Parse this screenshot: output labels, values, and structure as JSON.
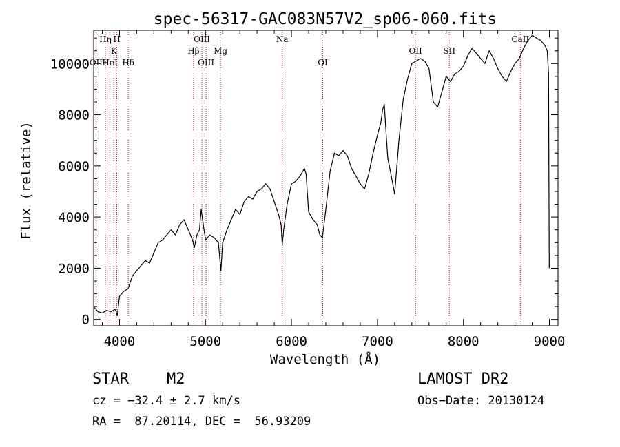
{
  "chart_data": {
    "type": "line",
    "title": "spec-56317-GAC083N57V2_sp06-060.fits",
    "xlabel": "Wavelength (Å)",
    "ylabel": "Flux (relative)",
    "xlim": [
      3700,
      9100
    ],
    "ylim": [
      -250,
      11300
    ],
    "xticks": [
      "4000",
      "5000",
      "6000",
      "7000",
      "8000",
      "9000"
    ],
    "yticks": [
      "0",
      "2000",
      "4000",
      "6000",
      "8000",
      "10000"
    ],
    "grid": false,
    "series": [
      {
        "x": [
          3700,
          3750,
          3800,
          3850,
          3900,
          3950,
          3975,
          4000,
          4050,
          4100,
          4150,
          4200,
          4250,
          4300,
          4350,
          4400,
          4450,
          4500,
          4550,
          4600,
          4650,
          4700,
          4750,
          4800,
          4850,
          4870,
          4900,
          4930,
          4950,
          5000,
          5050,
          5100,
          5150,
          5180,
          5200,
          5250,
          5300,
          5350,
          5400,
          5450,
          5500,
          5550,
          5600,
          5650,
          5700,
          5750,
          5800,
          5850,
          5880,
          5893,
          5910,
          5950,
          6000,
          6050,
          6100,
          6150,
          6170,
          6200,
          6250,
          6300,
          6330,
          6360,
          6400,
          6450,
          6500,
          6550,
          6600,
          6650,
          6700,
          6750,
          6800,
          6850,
          6900,
          6950,
          7000,
          7040,
          7060,
          7080,
          7100,
          7120,
          7150,
          7200,
          7250,
          7300,
          7350,
          7400,
          7450,
          7500,
          7550,
          7600,
          7650,
          7700,
          7750,
          7800,
          7850,
          7900,
          7950,
          8000,
          8050,
          8100,
          8150,
          8200,
          8250,
          8300,
          8350,
          8400,
          8450,
          8500,
          8550,
          8600,
          8650,
          8700,
          8750,
          8800,
          8850,
          8900,
          8950,
          8975,
          8990,
          8998
        ],
        "y": [
          500,
          300,
          250,
          350,
          300,
          400,
          150,
          900,
          1100,
          1200,
          1700,
          1900,
          2100,
          2300,
          2200,
          2600,
          3000,
          3100,
          3300,
          3500,
          3300,
          3700,
          3900,
          3500,
          3100,
          2800,
          3300,
          3500,
          4300,
          3100,
          3300,
          3200,
          3000,
          1900,
          3000,
          3500,
          3900,
          4300,
          4100,
          4600,
          4800,
          4700,
          5000,
          5100,
          5300,
          5100,
          4600,
          4100,
          3700,
          2900,
          3500,
          4500,
          5300,
          5400,
          5600,
          5900,
          5700,
          4200,
          3900,
          3700,
          3300,
          3200,
          4300,
          5800,
          6500,
          6400,
          6600,
          6400,
          5900,
          5600,
          5300,
          5100,
          5700,
          6500,
          7200,
          7700,
          8200,
          8400,
          7300,
          6300,
          5800,
          4900,
          7000,
          8600,
          9400,
          10000,
          10100,
          10200,
          10100,
          9800,
          8500,
          8300,
          8900,
          9500,
          9300,
          9600,
          9700,
          9900,
          10300,
          10600,
          10400,
          10200,
          10000,
          10500,
          10200,
          9800,
          9500,
          9300,
          9700,
          10000,
          10200,
          10600,
          10900,
          11100,
          11000,
          10900,
          10700,
          10500,
          9600,
          2000
        ]
      }
    ],
    "lines": [
      {
        "label": "OII",
        "x": 3727,
        "row": 3
      },
      {
        "label": "Hη",
        "x": 3836,
        "row": 1
      },
      {
        "label": "HeI",
        "x": 3889,
        "row": 3
      },
      {
        "label": "K",
        "x": 3934,
        "row": 2
      },
      {
        "label": "H",
        "x": 3969,
        "row": 1
      },
      {
        "label": "Hδ",
        "x": 4102,
        "row": 3
      },
      {
        "label": "Hβ",
        "x": 4861,
        "row": 2
      },
      {
        "label": "OIII",
        "x": 4959,
        "row": 1
      },
      {
        "label": "OIII",
        "x": 5007,
        "row": 3
      },
      {
        "label": "Mg",
        "x": 5175,
        "row": 2
      },
      {
        "label": "Na",
        "x": 5893,
        "row": 1
      },
      {
        "label": "OI",
        "x": 6364,
        "row": 3
      },
      {
        "label": "OII",
        "x": 7443,
        "row": 2
      },
      {
        "label": "SII",
        "x": 7836,
        "row": 2
      },
      {
        "label": "CaII",
        "x": 8662,
        "row": 1
      }
    ]
  },
  "info": {
    "class": "STAR",
    "subclass": "M2",
    "survey": "LAMOST DR2",
    "cz": "cz = −32.4 ± 2.7 km/s",
    "obs_date": "Obs−Date: 20130124",
    "radec": "RA =  87.20114, DEC =  56.93209"
  },
  "colors": {
    "line_markers": "#b02020",
    "spectrum": "#000000"
  }
}
